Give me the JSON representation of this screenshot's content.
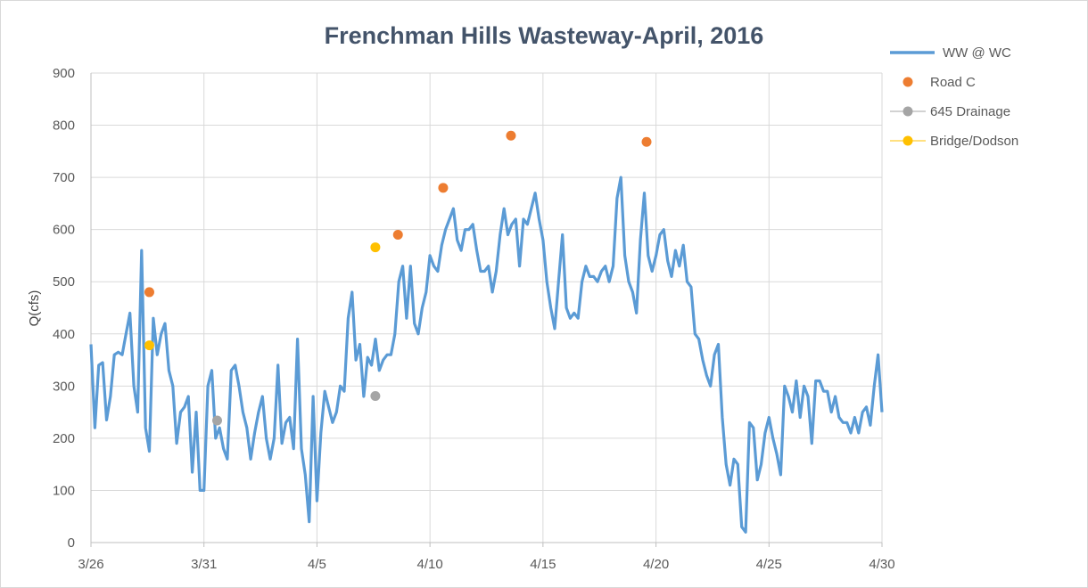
{
  "chart_data": {
    "type": "line",
    "title": "Frenchman Hills Wasteway-April, 2016",
    "xlabel": "",
    "ylabel": "Q(cfs)",
    "xlim": [
      "2016-03-26T00:00",
      "2016-04-30T00:00"
    ],
    "ylim": [
      0,
      900
    ],
    "x_ticks": [
      {
        "date": "2016-03-26T00:00",
        "label": "3/26"
      },
      {
        "date": "2016-03-31T00:00",
        "label": "3/31"
      },
      {
        "date": "2016-04-05T00:00",
        "label": "4/5"
      },
      {
        "date": "2016-04-10T00:00",
        "label": "4/10"
      },
      {
        "date": "2016-04-15T00:00",
        "label": "4/15"
      },
      {
        "date": "2016-04-20T00:00",
        "label": "4/20"
      },
      {
        "date": "2016-04-25T00:00",
        "label": "4/25"
      },
      {
        "date": "2016-04-30T00:00",
        "label": "4/30"
      }
    ],
    "y_ticks": [
      0,
      100,
      200,
      300,
      400,
      500,
      600,
      700,
      800,
      900
    ],
    "grid": true,
    "legend_placement": "right",
    "series": [
      {
        "name": "WW @ WC",
        "kind": "line",
        "color": "#5b9bd5",
        "sampling": "evenly spaced across xlim",
        "values": [
          380,
          220,
          340,
          345,
          235,
          280,
          360,
          365,
          360,
          400,
          440,
          300,
          250,
          560,
          220,
          175,
          430,
          360,
          400,
          420,
          330,
          300,
          190,
          250,
          260,
          280,
          135,
          250,
          100,
          100,
          300,
          330,
          200,
          220,
          180,
          160,
          330,
          340,
          300,
          250,
          220,
          160,
          210,
          250,
          280,
          200,
          160,
          200,
          340,
          190,
          230,
          240,
          180,
          390,
          180,
          130,
          40,
          280,
          80,
          210,
          290,
          260,
          230,
          250,
          300,
          290,
          430,
          480,
          350,
          380,
          280,
          355,
          340,
          390,
          330,
          350,
          360,
          360,
          400,
          500,
          530,
          430,
          530,
          420,
          400,
          450,
          480,
          550,
          530,
          520,
          570,
          600,
          620,
          640,
          580,
          560,
          600,
          600,
          610,
          560,
          520,
          520,
          530,
          480,
          520,
          590,
          640,
          590,
          610,
          620,
          530,
          620,
          610,
          640,
          670,
          620,
          580,
          500,
          450,
          410,
          500,
          590,
          450,
          430,
          440,
          430,
          500,
          530,
          510,
          510,
          500,
          520,
          530,
          500,
          530,
          660,
          700,
          550,
          500,
          480,
          440,
          580,
          670,
          550,
          520,
          550,
          590,
          600,
          540,
          510,
          560,
          530,
          570,
          500,
          490,
          400,
          390,
          350,
          320,
          300,
          360,
          380,
          240,
          150,
          110,
          160,
          150,
          30,
          20,
          230,
          220,
          120,
          150,
          210,
          240,
          200,
          170,
          130,
          300,
          280,
          250,
          310,
          240,
          300,
          280,
          190,
          310,
          310,
          290,
          290,
          250,
          280,
          240,
          230,
          230,
          210,
          240,
          210,
          250,
          260,
          225,
          300,
          360,
          250
        ]
      },
      {
        "name": "Road C",
        "kind": "markers",
        "color": "#ed7d31",
        "points": [
          {
            "x": "2016-03-28T14:00",
            "y": 480
          },
          {
            "x": "2016-04-08T14:00",
            "y": 590
          },
          {
            "x": "2016-04-10T14:00",
            "y": 680
          },
          {
            "x": "2016-04-13T14:00",
            "y": 780
          },
          {
            "x": "2016-04-19T14:00",
            "y": 768
          }
        ]
      },
      {
        "name": "645 Drainage",
        "kind": "markers",
        "color": "#a5a5a5",
        "points": [
          {
            "x": "2016-03-31T14:00",
            "y": 234
          },
          {
            "x": "2016-04-07T14:00",
            "y": 281
          }
        ]
      },
      {
        "name": "Bridge/Dodson",
        "kind": "markers",
        "color": "#ffc000",
        "points": [
          {
            "x": "2016-03-28T14:00",
            "y": 378
          },
          {
            "x": "2016-04-07T14:00",
            "y": 566
          }
        ]
      }
    ]
  }
}
